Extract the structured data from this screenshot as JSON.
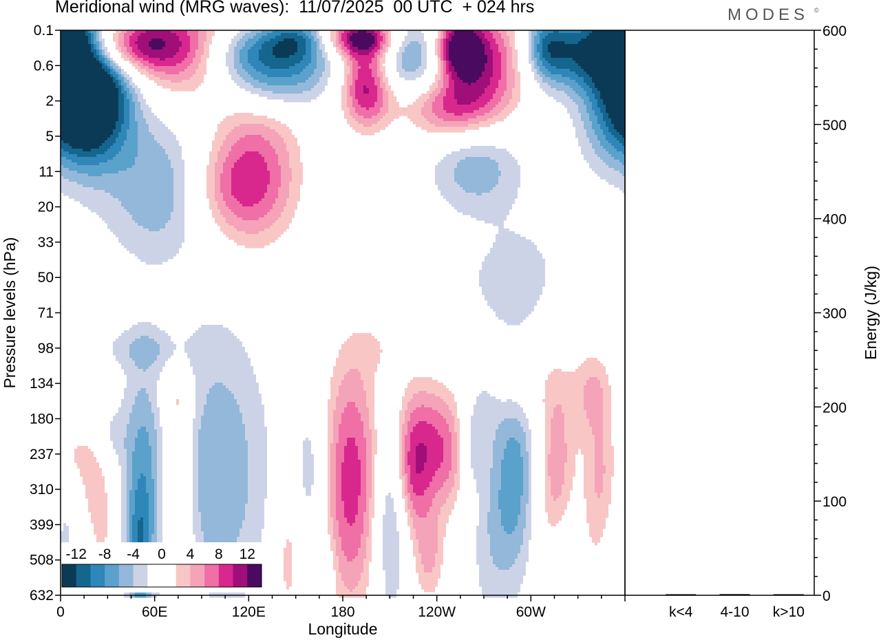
{
  "header": {
    "title": "Meridional wind (MRG waves):  11/07/2025  00 UTC  + 024 hrs",
    "brand": "MODES",
    "brand_mark": "©"
  },
  "chart_data": [
    {
      "type": "heatmap",
      "title": "Meridional wind (MRG waves):  11/07/2025  00 UTC  + 024 hrs",
      "xlabel": "Longitude",
      "ylabel": "Pressure levels (hPa)",
      "x_tick_labels": [
        "0",
        "60E",
        "120E",
        "180",
        "120W",
        "60W"
      ],
      "x_tick_degrees": [
        0,
        60,
        120,
        180,
        240,
        300
      ],
      "xlim": [
        0,
        360
      ],
      "y_tick_labels": [
        "0.1",
        "0.6",
        "2",
        "5",
        "11",
        "20",
        "33",
        "50",
        "71",
        "98",
        "134",
        "180",
        "237",
        "310",
        "399",
        "508",
        "632"
      ],
      "colorbar": {
        "levels": [
          -14,
          -12,
          -10,
          -8,
          -6,
          -4,
          -2,
          2,
          4,
          6,
          8,
          10,
          12,
          14
        ],
        "tick_labels": [
          "-12",
          "-8",
          "-4",
          "0",
          "4",
          "8",
          "12"
        ],
        "colors": [
          "#0b3a57",
          "#14668f",
          "#2f86b8",
          "#5aa1cb",
          "#93b8d9",
          "#cdd3e7",
          "#ffffff",
          "#ffffff",
          "#f9c6c6",
          "#f5a3b8",
          "#ef6fa6",
          "#d8288d",
          "#a00e79",
          "#4a0a5f"
        ]
      },
      "blobs": [
        {
          "lon": 35,
          "lev": 0.4,
          "rx": 28,
          "ry": 0.6,
          "v": 14
        },
        {
          "lon": 80,
          "lev": 0.6,
          "rx": 25,
          "ry": 1.0,
          "v": 10
        },
        {
          "lon": 10,
          "lev": 2.0,
          "rx": 16,
          "ry": 1.2,
          "v": -14
        },
        {
          "lon": 25,
          "lev": 1.6,
          "rx": 18,
          "ry": 1.4,
          "v": -12
        },
        {
          "lon": 5,
          "lev": 0.2,
          "rx": 14,
          "ry": 0.5,
          "v": -10
        },
        {
          "lon": 130,
          "lev": 0.7,
          "rx": 30,
          "ry": 0.6,
          "v": -12
        },
        {
          "lon": 155,
          "lev": 0.2,
          "rx": 15,
          "ry": 0.4,
          "v": -8
        },
        {
          "lon": 190,
          "lev": 0.2,
          "rx": 22,
          "ry": 0.4,
          "v": 14
        },
        {
          "lon": 195,
          "lev": 1.5,
          "rx": 12,
          "ry": 0.9,
          "v": 14
        },
        {
          "lon": 225,
          "lev": 0.4,
          "rx": 16,
          "ry": 0.6,
          "v": -10
        },
        {
          "lon": 265,
          "lev": 1.0,
          "rx": 22,
          "ry": 1.2,
          "v": 14
        },
        {
          "lon": 253,
          "lev": 0.5,
          "rx": 10,
          "ry": 0.6,
          "v": 10
        },
        {
          "lon": 245,
          "lev": 2.3,
          "rx": 20,
          "ry": 0.6,
          "v": 6
        },
        {
          "lon": 345,
          "lev": 0.6,
          "rx": 25,
          "ry": 0.8,
          "v": -14
        },
        {
          "lon": 310,
          "lev": 0.5,
          "rx": 10,
          "ry": 0.7,
          "v": -8
        },
        {
          "lon": 65,
          "lev": 4.5,
          "rx": 25,
          "ry": 1.4,
          "v": -6
        },
        {
          "lon": 125,
          "lev": 4.0,
          "rx": 22,
          "ry": 1.6,
          "v": 9
        },
        {
          "lon": 105,
          "lev": 4.5,
          "rx": 20,
          "ry": 1.0,
          "v": 5
        },
        {
          "lon": 265,
          "lev": 3.8,
          "rx": 20,
          "ry": 0.9,
          "v": -6
        },
        {
          "lon": 135,
          "lev": 1.7,
          "rx": 25,
          "ry": 0.5,
          "v": -5
        },
        {
          "lon": 230,
          "lev": 1.3,
          "rx": 25,
          "ry": 0.5,
          "v": -4
        },
        {
          "lon": 345,
          "lev": 2.5,
          "rx": 12,
          "ry": 1.0,
          "v": -4
        },
        {
          "lon": 210,
          "lev": 4.8,
          "rx": 12,
          "ry": 0.35,
          "v": 3
        },
        {
          "lon": 340,
          "lev": 5.5,
          "rx": 10,
          "ry": 0.35,
          "v": 3
        },
        {
          "lon": 250,
          "lev": 6.0,
          "rx": 10,
          "ry": 0.3,
          "v": 3
        },
        {
          "lon": 290,
          "lev": 7.0,
          "rx": 25,
          "ry": 1.2,
          "v": -3
        },
        {
          "lon": 20,
          "lev": 7.3,
          "rx": 15,
          "ry": 0.5,
          "v": 3
        },
        {
          "lon": 55,
          "lev": 9.0,
          "rx": 22,
          "ry": 0.4,
          "v": -3
        },
        {
          "lon": 145,
          "lev": 9.0,
          "rx": 8,
          "ry": 0.5,
          "v": 3
        },
        {
          "lon": 205,
          "lev": 9.0,
          "rx": 10,
          "ry": 0.6,
          "v": 3
        },
        {
          "lon": 290,
          "lev": 10.0,
          "rx": 18,
          "ry": 0.8,
          "v": 3
        },
        {
          "lon": 340,
          "lev": 10.2,
          "rx": 10,
          "ry": 1.0,
          "v": 6
        },
        {
          "lon": 75,
          "lev": 10.5,
          "rx": 8,
          "ry": 0.4,
          "v": 3
        },
        {
          "lon": 10,
          "lev": 12.0,
          "rx": 8,
          "ry": 0.5,
          "v": 3
        },
        {
          "lon": 270,
          "lev": 10.5,
          "rx": 8,
          "ry": 0.8,
          "v": -3
        },
        {
          "lon": 185,
          "lev": 12.8,
          "rx": 13,
          "ry": 2.8,
          "v": 11
        },
        {
          "lon": 230,
          "lev": 11.8,
          "rx": 15,
          "ry": 1.4,
          "v": 11
        },
        {
          "lon": 210,
          "lev": 13.3,
          "rx": 7,
          "ry": 2.2,
          "v": -7
        },
        {
          "lon": 160,
          "lev": 12.5,
          "rx": 7,
          "ry": 1.4,
          "v": -4
        },
        {
          "lon": 100,
          "lev": 12.5,
          "rx": 22,
          "ry": 2.8,
          "v": -6
        },
        {
          "lon": 52,
          "lev": 13.0,
          "rx": 9,
          "ry": 2.5,
          "v": -7
        },
        {
          "lon": 30,
          "lev": 11.5,
          "rx": 8,
          "ry": 0.6,
          "v": -3
        },
        {
          "lon": 75,
          "lev": 13.0,
          "rx": 7,
          "ry": 2.5,
          "v": 6
        },
        {
          "lon": 22,
          "lev": 12.8,
          "rx": 8,
          "ry": 1.2,
          "v": 5
        },
        {
          "lon": 290,
          "lev": 12.5,
          "rx": 10,
          "ry": 2.0,
          "v": -7
        },
        {
          "lon": 316,
          "lev": 12.8,
          "rx": 9,
          "ry": 2.3,
          "v": 8
        },
        {
          "lon": 262,
          "lev": 11.8,
          "rx": 6,
          "ry": 0.8,
          "v": -4
        },
        {
          "lon": 250,
          "lev": 12.0,
          "rx": 8,
          "ry": 1.2,
          "v": 4
        },
        {
          "lon": 345,
          "lev": 12.5,
          "rx": 8,
          "ry": 1.2,
          "v": 5
        },
        {
          "lon": 225,
          "lev": 13.0,
          "rx": 7,
          "ry": 1.0,
          "v": 3
        },
        {
          "lon": 145,
          "lev": 15.0,
          "rx": 6,
          "ry": 1.6,
          "v": 5
        },
        {
          "lon": 235,
          "lev": 15.0,
          "rx": 8,
          "ry": 1.0,
          "v": 6
        },
        {
          "lon": 50,
          "lev": 15.0,
          "rx": 5,
          "ry": 1.2,
          "v": -5
        },
        {
          "lon": 275,
          "lev": 14.5,
          "rx": 10,
          "ry": 1.8,
          "v": -3
        },
        {
          "lon": 320,
          "lev": 14.8,
          "rx": 8,
          "ry": 1.2,
          "v": -4
        },
        {
          "lon": 340,
          "lev": 14.5,
          "rx": 8,
          "ry": 1.4,
          "v": 3
        },
        {
          "lon": 28,
          "lev": 14.8,
          "rx": 6,
          "ry": 1.2,
          "v": 3
        },
        {
          "lon": 3,
          "lev": 14.5,
          "rx": 4,
          "ry": 0.8,
          "v": -3
        },
        {
          "lon": 85,
          "lev": 15.8,
          "rx": 6,
          "ry": 0.6,
          "v": 3
        },
        {
          "lon": 170,
          "lev": 15.5,
          "rx": 4,
          "ry": 0.8,
          "v": -3
        }
      ]
    },
    {
      "type": "bar",
      "ylabel": "Energy (J/kg)",
      "categories": [
        "k<4",
        "4-10",
        "k>10"
      ],
      "values": [
        0.3,
        1.2,
        0.1
      ],
      "ylim": [
        0,
        600
      ],
      "y_tick_labels": [
        "0",
        "100",
        "200",
        "300",
        "400",
        "500",
        "600"
      ]
    }
  ]
}
